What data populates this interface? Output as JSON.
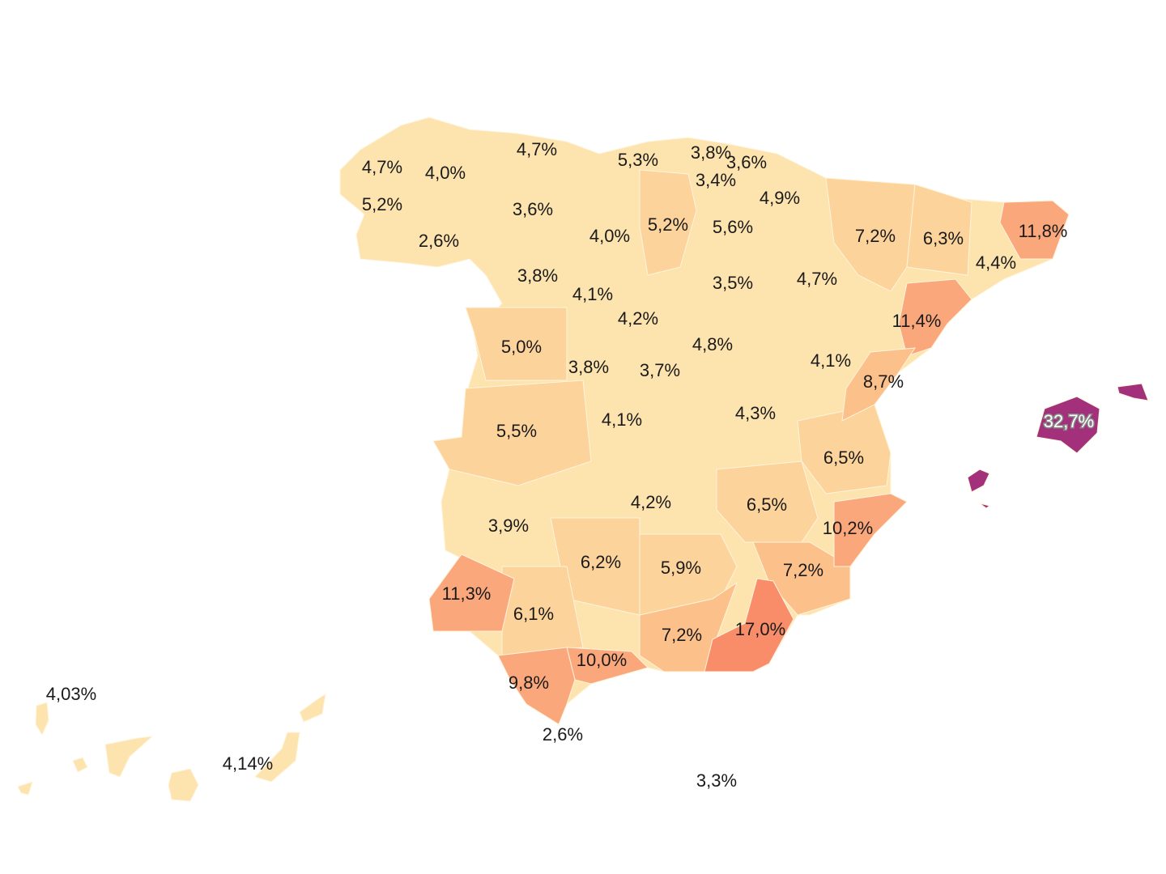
{
  "legend_colors": {
    "low": "#fde3ae",
    "mid": "#fcd39b",
    "high": "#fcc08a",
    "very_high": "#fba77c",
    "extreme": "#f98d6a",
    "max": "#a3307a"
  },
  "regions": [
    {
      "name": "A Coruña",
      "value": "4,7%"
    },
    {
      "name": "Lugo",
      "value": "4,0%"
    },
    {
      "name": "Pontevedra",
      "value": "5,2%"
    },
    {
      "name": "Ourense",
      "value": "2,6%"
    },
    {
      "name": "Asturias",
      "value": "4,7%"
    },
    {
      "name": "León",
      "value": "3,6%"
    },
    {
      "name": "Cantabria",
      "value": "5,3%"
    },
    {
      "name": "Bizkaia",
      "value": "3,8%"
    },
    {
      "name": "Gipuzkoa",
      "value": "3,6%"
    },
    {
      "name": "Álava",
      "value": "3,4%"
    },
    {
      "name": "Navarra",
      "value": "4,9%"
    },
    {
      "name": "Palencia",
      "value": "4,0%"
    },
    {
      "name": "Burgos",
      "value": "5,2%"
    },
    {
      "name": "La Rioja",
      "value": "5,6%"
    },
    {
      "name": "Huesca",
      "value": "7,2%"
    },
    {
      "name": "Lleida",
      "value": "6,3%"
    },
    {
      "name": "Girona",
      "value": "11,8%"
    },
    {
      "name": "Barcelona",
      "value": "4,4%"
    },
    {
      "name": "Zamora",
      "value": "3,8%"
    },
    {
      "name": "Valladolid",
      "value": "4,1%"
    },
    {
      "name": "Soria",
      "value": "3,5%"
    },
    {
      "name": "Zaragoza",
      "value": "4,7%"
    },
    {
      "name": "Segovia",
      "value": "4,2%"
    },
    {
      "name": "Tarragona",
      "value": "11,4%"
    },
    {
      "name": "Salamanca",
      "value": "5,0%"
    },
    {
      "name": "Ávila",
      "value": "3,8%"
    },
    {
      "name": "Madrid",
      "value": "3,7%"
    },
    {
      "name": "Guadalajara",
      "value": "4,8%"
    },
    {
      "name": "Teruel",
      "value": "4,1%"
    },
    {
      "name": "Castellón",
      "value": "8,7%"
    },
    {
      "name": "Cáceres",
      "value": "5,5%"
    },
    {
      "name": "Toledo",
      "value": "4,1%"
    },
    {
      "name": "Cuenca",
      "value": "4,3%"
    },
    {
      "name": "Valencia",
      "value": "6,5%"
    },
    {
      "name": "Ciudad Real",
      "value": "4,2%"
    },
    {
      "name": "Albacete",
      "value": "6,5%"
    },
    {
      "name": "Alicante",
      "value": "10,2%"
    },
    {
      "name": "Badajoz",
      "value": "3,9%"
    },
    {
      "name": "Córdoba",
      "value": "6,2%"
    },
    {
      "name": "Jaén",
      "value": "5,9%"
    },
    {
      "name": "Murcia",
      "value": "7,2%"
    },
    {
      "name": "Huelva",
      "value": "11,3%"
    },
    {
      "name": "Sevilla",
      "value": "6,1%"
    },
    {
      "name": "Granada",
      "value": "7,2%"
    },
    {
      "name": "Almería",
      "value": "17,0%"
    },
    {
      "name": "Málaga",
      "value": "10,0%"
    },
    {
      "name": "Cádiz",
      "value": "9,8%"
    },
    {
      "name": "Ceuta",
      "value": "2,6%"
    },
    {
      "name": "Melilla",
      "value": "3,3%"
    },
    {
      "name": "Illes Balears",
      "value": "32,7%"
    },
    {
      "name": "Santa Cruz de Tenerife",
      "value": "4,03%"
    },
    {
      "name": "Las Palmas",
      "value": "4,14%"
    }
  ]
}
